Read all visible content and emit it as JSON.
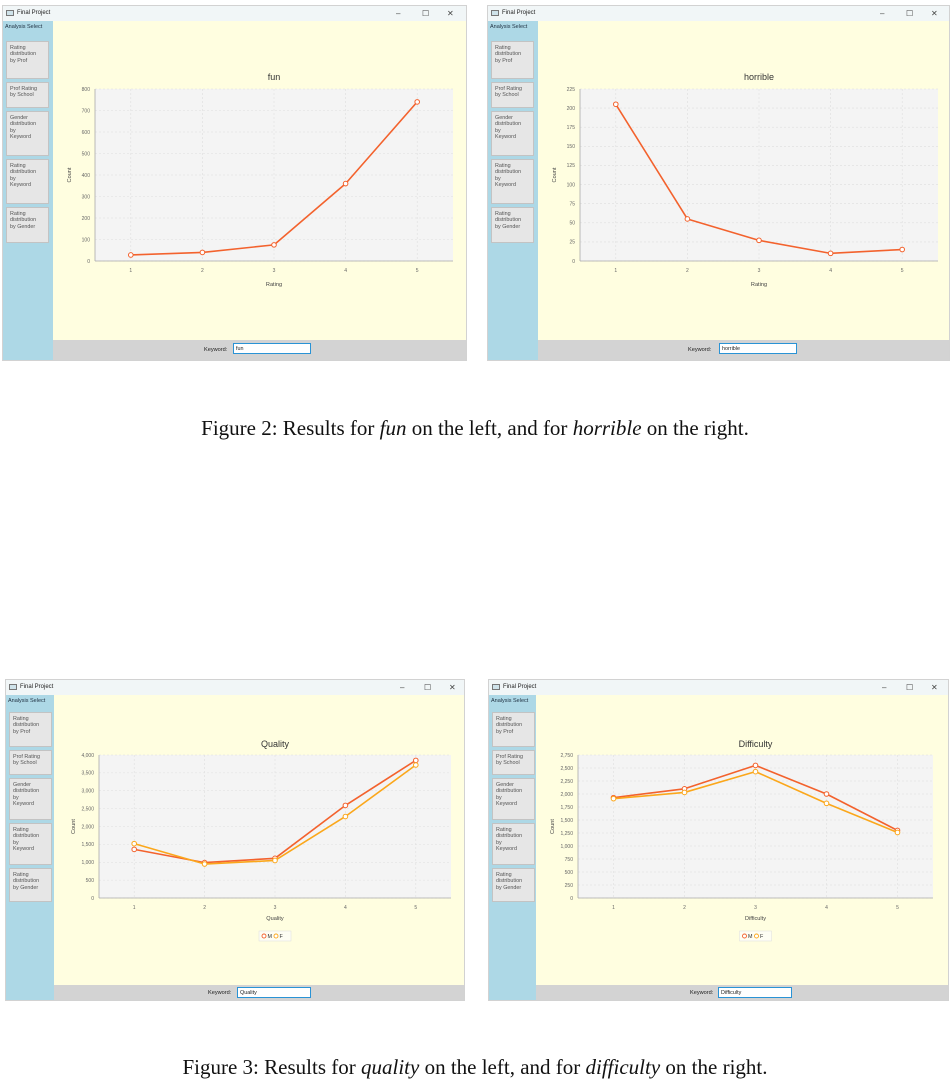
{
  "common": {
    "window_title": "Final Project",
    "sidebar_title": "Analysis Select",
    "sidebar_items": [
      "Rating\ndistribution\nby Prof",
      "Prof Rating\nby School",
      "Gender\ndistribution\nby\nKeyword",
      "Rating\ndistribution\nby\nKeyword",
      "Rating\ndistribution\nby Gender"
    ],
    "keyword_label": "Keyword:",
    "minimize_glyph": "–",
    "maximize_glyph": "☐",
    "close_glyph": "✕",
    "colors": {
      "series_m": "#f3622d",
      "series_f": "#fba71b"
    }
  },
  "windows": [
    {
      "keyword_value": "fun",
      "chart_data": {
        "type": "line",
        "title": "fun",
        "xlabel": "Rating",
        "ylabel": "Count",
        "categories": [
          "1",
          "2",
          "3",
          "4",
          "5"
        ],
        "ylim": [
          0,
          800
        ],
        "yticks": [
          0,
          100,
          200,
          300,
          400,
          500,
          600,
          700,
          800
        ],
        "ytick_labels": [
          "0",
          "100",
          "200",
          "300",
          "400",
          "500",
          "600",
          "700",
          "800"
        ],
        "series": [
          {
            "name": "",
            "values": [
              28,
              40,
              75,
              360,
              740
            ]
          }
        ]
      }
    },
    {
      "keyword_value": "horrible",
      "chart_data": {
        "type": "line",
        "title": "horrible",
        "xlabel": "Rating",
        "ylabel": "Count",
        "categories": [
          "1",
          "2",
          "3",
          "4",
          "5"
        ],
        "ylim": [
          0,
          225
        ],
        "yticks": [
          0,
          25,
          50,
          75,
          100,
          125,
          150,
          175,
          200,
          225
        ],
        "ytick_labels": [
          "0",
          "25",
          "50",
          "75",
          "100",
          "125",
          "150",
          "175",
          "200",
          "225"
        ],
        "series": [
          {
            "name": "",
            "values": [
              205,
              55,
              27,
              10,
              15
            ]
          }
        ]
      }
    },
    {
      "keyword_value": "Quality",
      "chart_data": {
        "type": "line",
        "title": "Quality",
        "xlabel": "Quality",
        "ylabel": "Count",
        "categories": [
          "1",
          "2",
          "3",
          "4",
          "5"
        ],
        "ylim": [
          0,
          4000
        ],
        "yticks": [
          0,
          500,
          1000,
          1500,
          2000,
          2500,
          3000,
          3500,
          4000
        ],
        "ytick_labels": [
          "0",
          "500",
          "1,000",
          "1,500",
          "2,000",
          "2,500",
          "3,000",
          "3,500",
          "4,000"
        ],
        "series": [
          {
            "name": "M",
            "values": [
              1360,
              990,
              1110,
              2590,
              3850
            ]
          },
          {
            "name": "F",
            "values": [
              1520,
              950,
              1050,
              2280,
              3720
            ]
          }
        ]
      }
    },
    {
      "keyword_value": "Difficulty",
      "chart_data": {
        "type": "line",
        "title": "Difficulty",
        "xlabel": "Difficulty",
        "ylabel": "Count",
        "categories": [
          "1",
          "2",
          "3",
          "4",
          "5"
        ],
        "ylim": [
          0,
          2750
        ],
        "yticks": [
          0,
          250,
          500,
          750,
          1000,
          1250,
          1500,
          1750,
          2000,
          2250,
          2500,
          2750
        ],
        "ytick_labels": [
          "0",
          "250",
          "500",
          "750",
          "1,000",
          "1,250",
          "1,500",
          "1,750",
          "2,000",
          "2,250",
          "2,500",
          "2,750"
        ],
        "series": [
          {
            "name": "M",
            "values": [
              1930,
              2100,
              2550,
              2000,
              1300
            ]
          },
          {
            "name": "F",
            "values": [
              1910,
              2030,
              2430,
              1820,
              1260
            ]
          }
        ]
      }
    }
  ],
  "captions": {
    "fig2": {
      "prefix": "Figure 2: Results for ",
      "kw1": "fun",
      "mid": " on the left, and for ",
      "kw2": "horrible",
      "suffix": " on the right."
    },
    "fig3": {
      "prefix": "Figure 3: Results for ",
      "kw1": "quality",
      "mid": " on the left, and for ",
      "kw2": "difficulty",
      "suffix": " on the right."
    }
  }
}
